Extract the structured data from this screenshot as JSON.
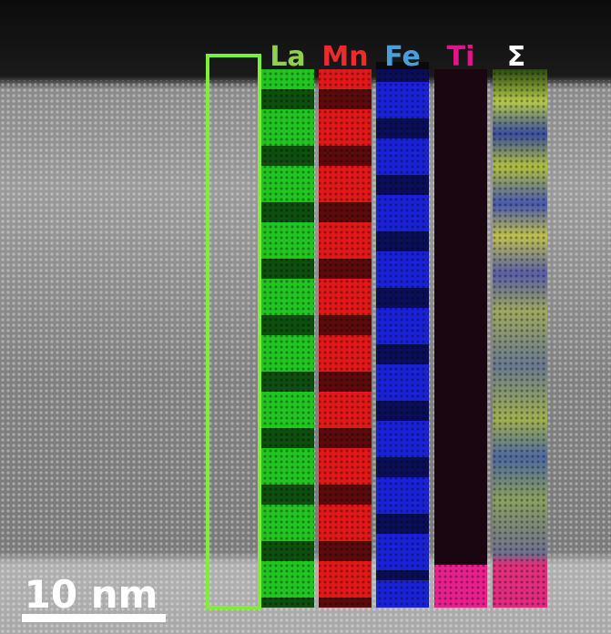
{
  "element_maps": [
    {
      "label": "La"
    },
    {
      "label": "Mn"
    },
    {
      "label": "Fe"
    },
    {
      "label": "Ti"
    },
    {
      "label": "Σ"
    }
  ],
  "scale_bar": {
    "label": "10 nm"
  }
}
